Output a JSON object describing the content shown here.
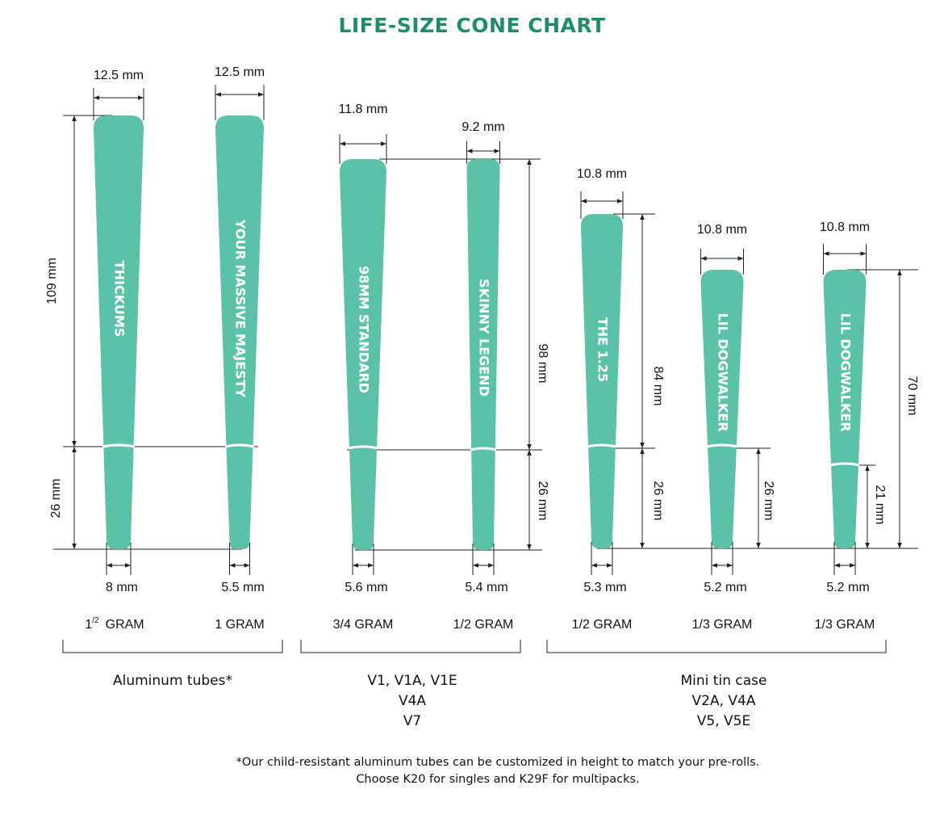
{
  "title": "LIFE-SIZE CONE CHART",
  "cones": [
    {
      "name": "THICKUMS",
      "top_width": "12.5 mm",
      "bottom_width": "8 mm",
      "weight": {
        "whole": "1",
        "fraction": "/2",
        "unit": "GRAM"
      }
    },
    {
      "name": "YOUR MASSIVE MAJESTY",
      "top_width": "12.5 mm",
      "bottom_width": "5.5 mm",
      "weight": "1 GRAM"
    },
    {
      "name": "98MM STANDARD",
      "top_width": "11.8 mm",
      "bottom_width": "5.6 mm",
      "weight": "3/4 GRAM"
    },
    {
      "name": "SKINNY LEGEND",
      "top_width": "9.2 mm",
      "bottom_width": "5.4 mm",
      "weight": "1/2 GRAM"
    },
    {
      "name": "THE 1.25",
      "top_width": "10.8 mm",
      "bottom_width": "5.3 mm",
      "weight": "1/2 GRAM"
    },
    {
      "name": "LIL DOGWALKER",
      "top_width": "10.8 mm",
      "bottom_width": "5.2 mm",
      "weight": "1/3 GRAM"
    },
    {
      "name": "LIL DOGWALKER",
      "top_width": "10.8 mm",
      "bottom_width": "5.2 mm",
      "weight": "1/3 GRAM"
    }
  ],
  "heights": [
    "109 mm",
    "26 mm",
    "98 mm",
    "26 mm",
    "84 mm",
    "26 mm",
    "26 mm",
    "21 mm",
    "70 mm"
  ],
  "groups": [
    {
      "lines": [
        "Aluminum tubes*"
      ]
    },
    {
      "lines": [
        "V1, V1A, V1E",
        "V4A",
        "V7"
      ]
    },
    {
      "lines": [
        "Mini tin case",
        "V2A, V4A",
        "V5, V5E"
      ]
    }
  ],
  "footnote": [
    "*Our child-resistant aluminum tubes can be customized in height to match your pre-rolls.",
    "Choose K20 for singles and K29F for multipacks."
  ]
}
